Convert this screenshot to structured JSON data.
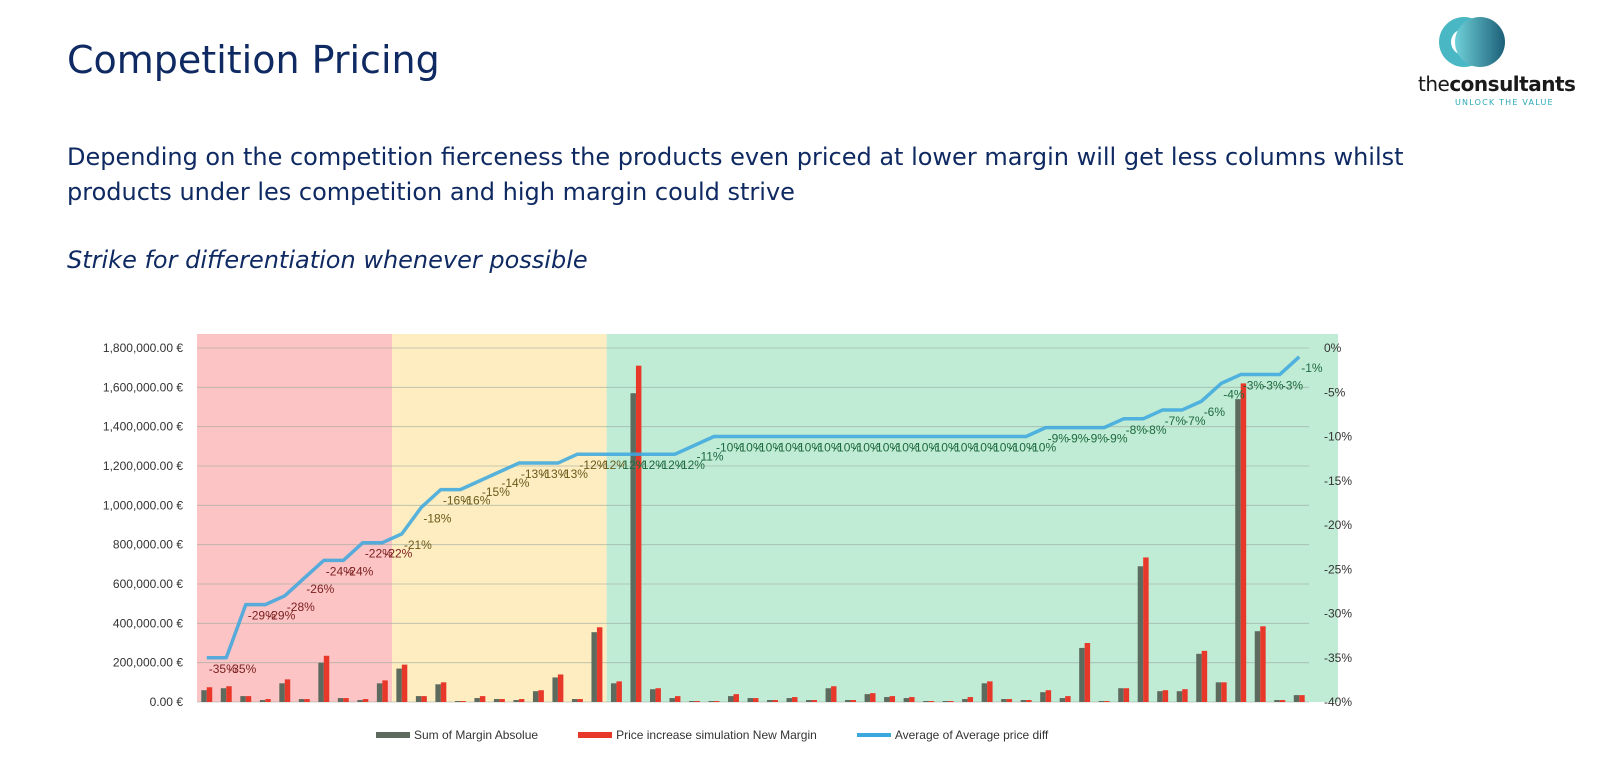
{
  "slide": {
    "title": "Competition Pricing",
    "body": "Depending on the competition fierceness the products even priced at lower margin will get less  columns whilst products under les competition and high margin could strive",
    "subtitle": "Strike for differentiation whenever possible"
  },
  "logo": {
    "name_light": "the",
    "name_bold": "consultants",
    "tagline": "UNLOCK THE VALUE",
    "colors": [
      "#49b8c4",
      "#1c6b82"
    ]
  },
  "colors": {
    "zone_red": "#fcc4c4",
    "zone_yellow": "#fdedc0",
    "zone_green": "#c0ebd4",
    "bar_margin": "#5d6a5e",
    "bar_new": "#e8382a",
    "line": "#3aa7df",
    "label_red": "#7d2020",
    "label_yellow": "#6b5a1b",
    "label_green": "#1d6a40"
  },
  "chart_data": {
    "type": "bar",
    "series": [
      {
        "name": "Sum of Margin Absolue",
        "type": "bar",
        "values": [
          60000,
          70000,
          30000,
          10000,
          95000,
          15000,
          200000,
          20000,
          10000,
          95000,
          170000,
          30000,
          90000,
          5000,
          20000,
          15000,
          10000,
          55000,
          125000,
          15000,
          355000,
          95000,
          1570000,
          65000,
          20000,
          5000,
          5000,
          30000,
          20000,
          10000,
          20000,
          10000,
          70000,
          10000,
          40000,
          25000,
          20000,
          5000,
          5000,
          15000,
          95000,
          15000,
          10000,
          50000,
          20000,
          275000,
          5000,
          70000,
          690000,
          55000,
          55000,
          245000,
          100000,
          1540000,
          360000,
          10000,
          35000
        ]
      },
      {
        "name": "Price increase simulation New Margin",
        "type": "bar",
        "values": [
          75000,
          80000,
          30000,
          15000,
          115000,
          15000,
          235000,
          20000,
          15000,
          110000,
          190000,
          30000,
          100000,
          5000,
          30000,
          15000,
          15000,
          60000,
          140000,
          15000,
          380000,
          105000,
          1710000,
          70000,
          30000,
          5000,
          5000,
          40000,
          20000,
          10000,
          25000,
          10000,
          80000,
          10000,
          45000,
          30000,
          25000,
          5000,
          5000,
          25000,
          105000,
          15000,
          10000,
          60000,
          30000,
          300000,
          5000,
          70000,
          735000,
          60000,
          65000,
          260000,
          100000,
          1620000,
          385000,
          10000,
          35000
        ]
      },
      {
        "name": "Average of Average price diff",
        "type": "line",
        "axis": "secondary",
        "values": [
          -35,
          -35,
          -29,
          -29,
          -28,
          -26,
          -24,
          -24,
          -22,
          -22,
          -21,
          -18,
          -16,
          -16,
          -15,
          -14,
          -13,
          -13,
          -13,
          -12,
          -12,
          -12,
          -12,
          -12,
          -12,
          -11,
          -10,
          -10,
          -10,
          -10,
          -10,
          -10,
          -10,
          -10,
          -10,
          -10,
          -10,
          -10,
          -10,
          -10,
          -10,
          -10,
          -10,
          -9,
          -9,
          -9,
          -9,
          -8,
          -8,
          -7,
          -7,
          -6,
          -4,
          -3,
          -3,
          -3,
          -1
        ]
      }
    ],
    "point_labels": [
      "-35%",
      "-35%",
      "-29%",
      "-29%",
      "-28%",
      "-26%",
      "-24%",
      "-24%",
      "-22%",
      "-22%",
      "-21%",
      "-18%",
      "-16%",
      "-16%",
      "-15%",
      "-14%",
      "-13%",
      "-13%",
      "-13%",
      "-12%",
      "-12%",
      "-12%",
      "-12%",
      "-12%",
      "-12%",
      "-11%",
      "-10%",
      "-10%",
      "-10%",
      "-10%",
      "-10%",
      "-10%",
      "-10%",
      "-10%",
      "-10%",
      "-10%",
      "-10%",
      "-10%",
      "-10%",
      "-10%",
      "-10%",
      "-10%",
      "-10%",
      "-9%",
      "-9%",
      "-9%",
      "-9%",
      "-8%",
      "-8%",
      "-7%",
      "-7%",
      "-6%",
      "-4%",
      "-3%",
      "-3%",
      "-3%",
      "-1%"
    ],
    "zones": [
      {
        "color": "red",
        "to_index": 9
      },
      {
        "color": "yellow",
        "to_index": 20
      },
      {
        "color": "green",
        "to_index": 56
      }
    ],
    "y_left": {
      "min": 0,
      "max": 1800000,
      "step": 200000,
      "ticks": [
        "0.00 €",
        "200,000.00 €",
        "400,000.00 €",
        "600,000.00 €",
        "800,000.00 €",
        "1,000,000.00 €",
        "1,200,000.00 €",
        "1,400,000.00 €",
        "1,600,000.00 €",
        "1,800,000.00 €"
      ]
    },
    "y_right": {
      "min": -40,
      "max": 0,
      "step": 5,
      "ticks": [
        "-40%",
        "-35%",
        "-30%",
        "-25%",
        "-20%",
        "-15%",
        "-10%",
        "-5%",
        "0%"
      ]
    },
    "grid": true,
    "legend": "bottom"
  }
}
